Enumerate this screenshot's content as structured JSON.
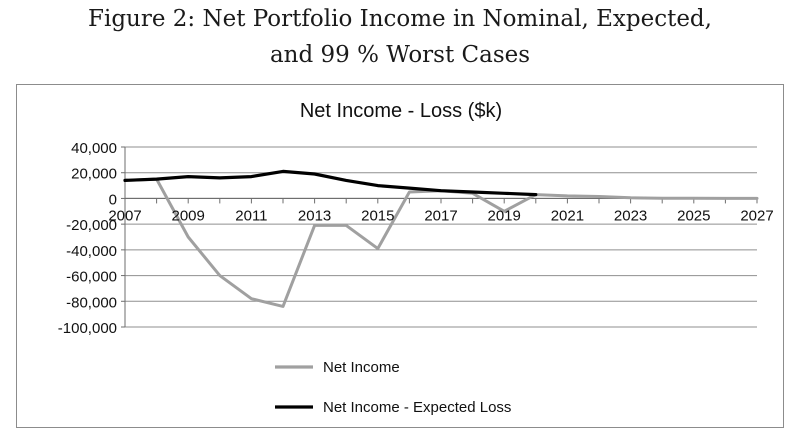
{
  "figure": {
    "title_line1": "Figure 2: Net Portfolio Income in Nominal, Expected,",
    "title_line2": "and 99 % Worst Cases"
  },
  "chart_data": {
    "type": "line",
    "title": "Net Income - Loss ($k)",
    "xlabel": "",
    "ylabel": "",
    "x": [
      2007,
      2008,
      2009,
      2010,
      2011,
      2012,
      2013,
      2014,
      2015,
      2016,
      2017,
      2018,
      2019,
      2020,
      2021,
      2022,
      2023,
      2024,
      2025,
      2026,
      2027
    ],
    "x_tick_labels": [
      "2007",
      "2009",
      "2011",
      "2013",
      "2015",
      "2017",
      "2019",
      "2021",
      "2023",
      "2025",
      "2027"
    ],
    "y_tick_labels": [
      "40,000",
      "20,000",
      "0",
      "-20,000",
      "-40,000",
      "-60,000",
      "-80,000",
      "-100,000"
    ],
    "ylim": [
      -100000,
      40000
    ],
    "xlim": [
      2007,
      2027
    ],
    "grid": true,
    "legend_position": "bottom",
    "series": [
      {
        "name": "Net Income",
        "color": "#a0a0a0",
        "points": [
          [
            2007,
            14000
          ],
          [
            2008,
            15000
          ],
          [
            2009,
            -30000
          ],
          [
            2010,
            -60000
          ],
          [
            2011,
            -78000
          ],
          [
            2012,
            -84000
          ],
          [
            2013,
            -21000
          ],
          [
            2014,
            -21000
          ],
          [
            2015,
            -39000
          ],
          [
            2016,
            5000
          ],
          [
            2017,
            6000
          ],
          [
            2018,
            4000
          ],
          [
            2019,
            -10000
          ],
          [
            2020,
            3000
          ],
          [
            2021,
            2000
          ],
          [
            2022,
            1500
          ],
          [
            2023,
            500
          ],
          [
            2024,
            200
          ],
          [
            2025,
            100
          ],
          [
            2026,
            50
          ],
          [
            2027,
            0
          ]
        ]
      },
      {
        "name": "Net Income - Expected Loss",
        "color": "#000000",
        "points": [
          [
            2007,
            14000
          ],
          [
            2008,
            15000
          ],
          [
            2009,
            17000
          ],
          [
            2010,
            16000
          ],
          [
            2011,
            17000
          ],
          [
            2012,
            21000
          ],
          [
            2013,
            19000
          ],
          [
            2014,
            14000
          ],
          [
            2015,
            10000
          ],
          [
            2016,
            8000
          ],
          [
            2017,
            6000
          ],
          [
            2018,
            5000
          ],
          [
            2019,
            4000
          ],
          [
            2020,
            3000
          ]
        ]
      }
    ]
  }
}
